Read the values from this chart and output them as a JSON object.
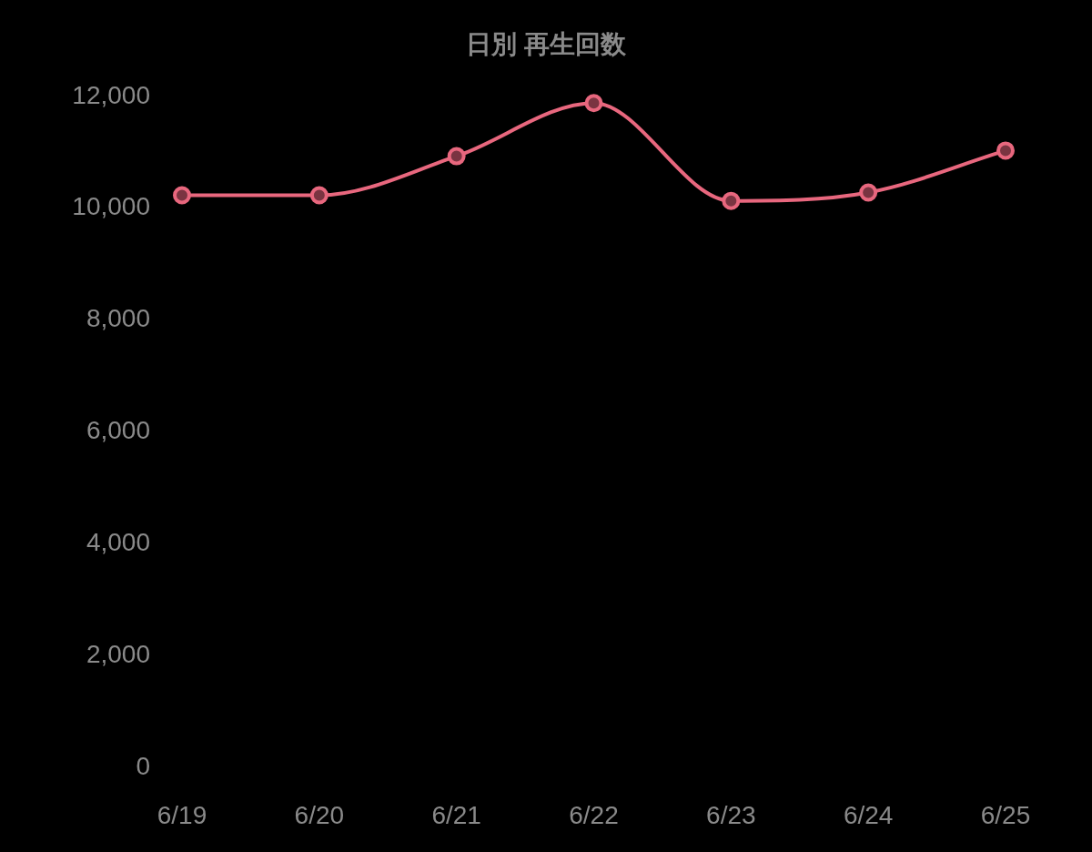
{
  "chart_data": {
    "type": "line",
    "title": "日別 再生回数",
    "categories": [
      "6/19",
      "6/20",
      "6/21",
      "6/22",
      "6/23",
      "6/24",
      "6/25"
    ],
    "series": [
      {
        "color": "#e8677e",
        "values": [
          10200,
          10200,
          10900,
          11850,
          10100,
          10250,
          11000
        ]
      }
    ],
    "ylim": [
      0,
      12000
    ],
    "yticks": [
      {
        "value": 0,
        "label": "0"
      },
      {
        "value": 2000,
        "label": "2,000"
      },
      {
        "value": 4000,
        "label": "4,000"
      },
      {
        "value": 6000,
        "label": "6,000"
      },
      {
        "value": 8000,
        "label": "8,000"
      },
      {
        "value": 10000,
        "label": "10,000"
      },
      {
        "value": 12000,
        "label": "12,000"
      }
    ],
    "marker": "circle",
    "line_style": "solid",
    "grid": false
  }
}
